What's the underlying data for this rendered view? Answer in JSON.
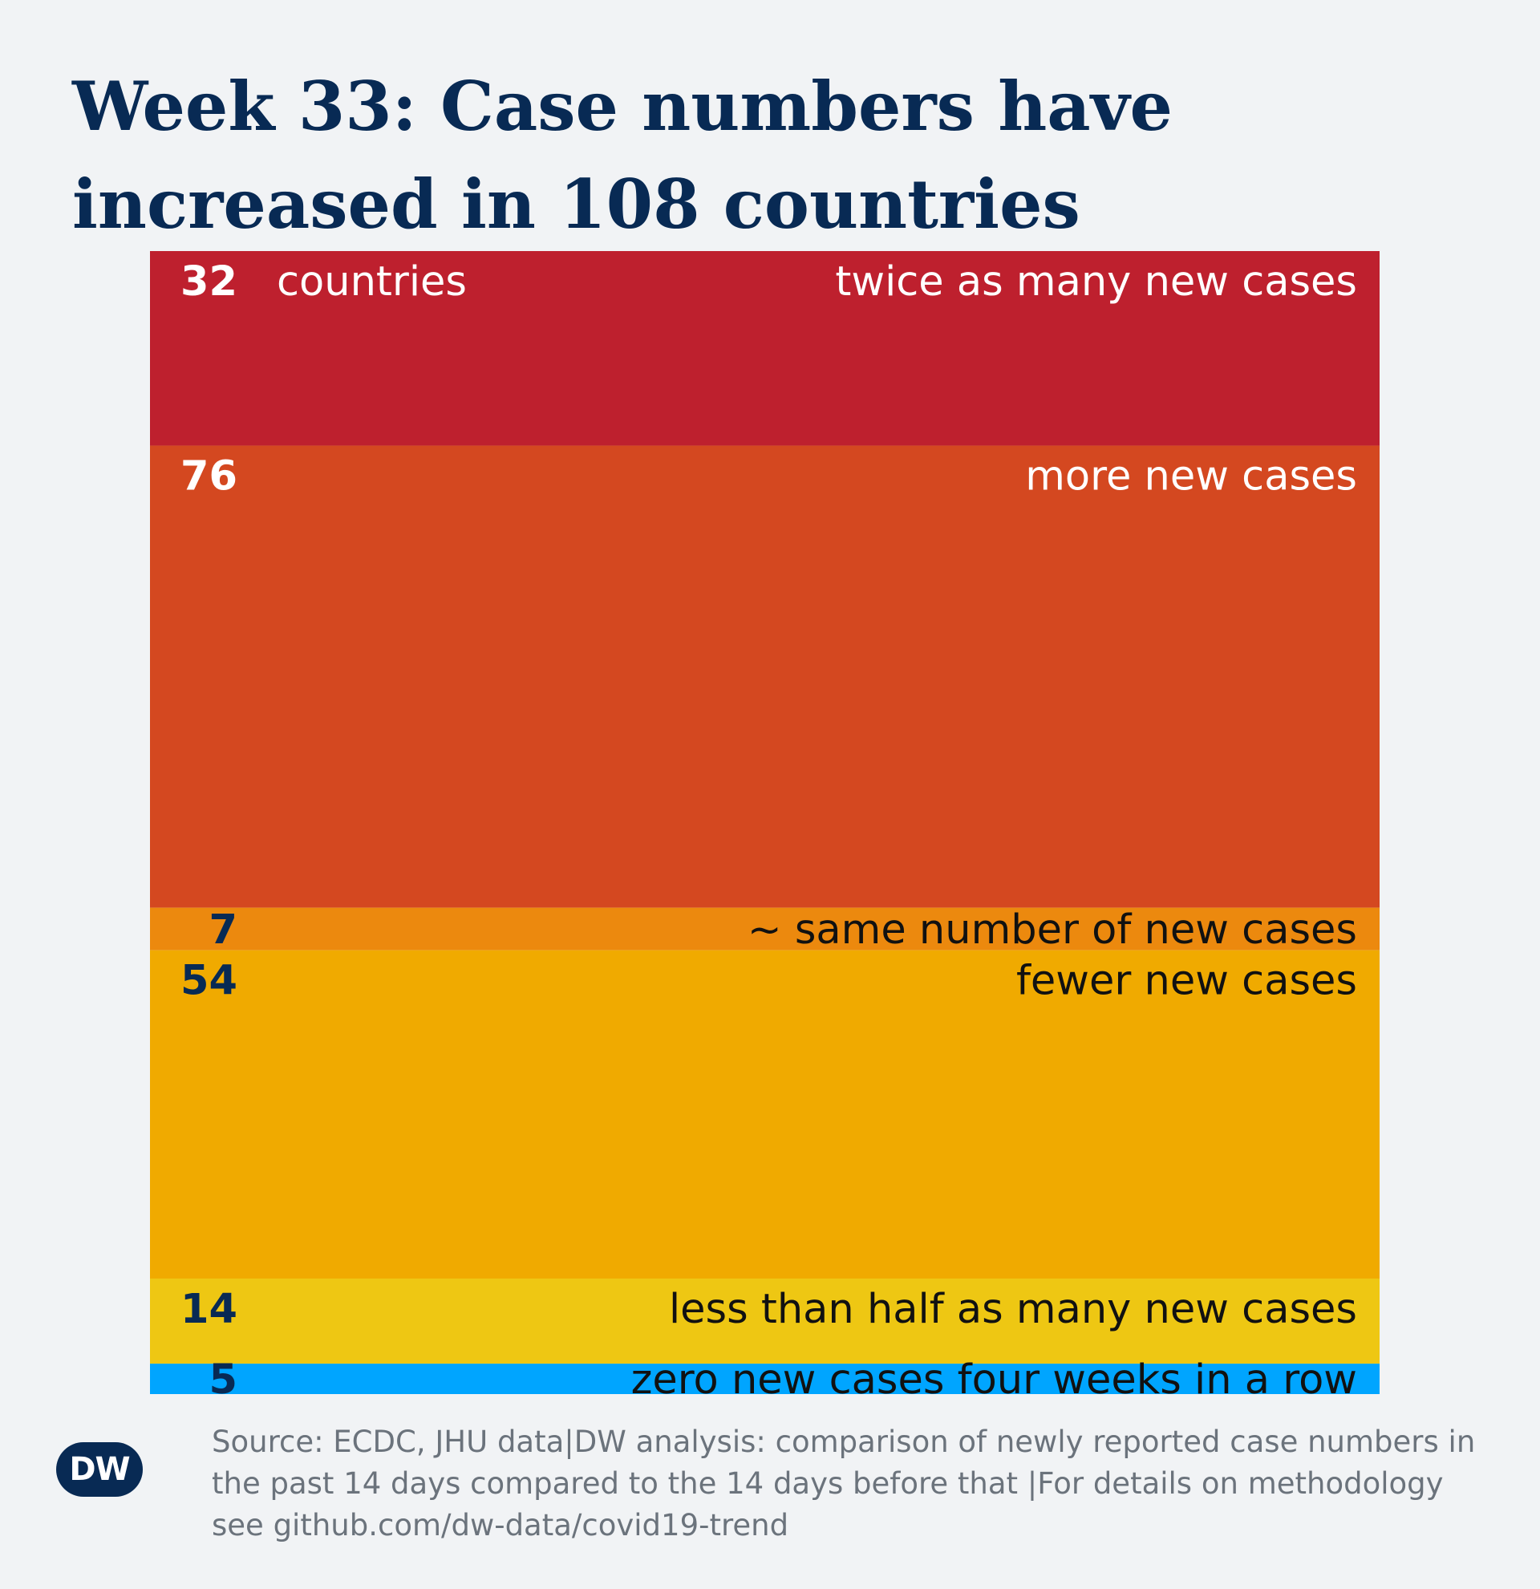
{
  "title": "Week 33: Case numbers have increased in 108 countries",
  "source": "Source: ECDC, JHU data|DW analysis: comparison of newly reported case numbers in the past 14 days compared to the 14 days before that |For details on methodology see github.com/dw-data/covid19-trend",
  "logo": {
    "text": "DW"
  },
  "chart_data": {
    "type": "bar",
    "orientation": "stacked-vertical",
    "unit_label": "countries",
    "categories": [
      "twice as many new cases",
      "more new cases",
      "~ same number of new cases",
      "fewer new cases",
      "less than half as many new cases",
      "zero new cases four weeks in a row"
    ],
    "values": [
      32,
      76,
      7,
      54,
      14,
      5
    ],
    "colors": [
      "#be202e",
      "#d44820",
      "#ec890e",
      "#f0aa00",
      "#eec713",
      "#00a5ff"
    ],
    "number_colors": [
      "#ffffff",
      "#ffffff",
      "#082a54",
      "#082a54",
      "#082a54",
      "#082a54"
    ],
    "label_colors": [
      "#ffffff",
      "#ffffff",
      "#111111",
      "#111111",
      "#111111",
      "#111111"
    ]
  }
}
